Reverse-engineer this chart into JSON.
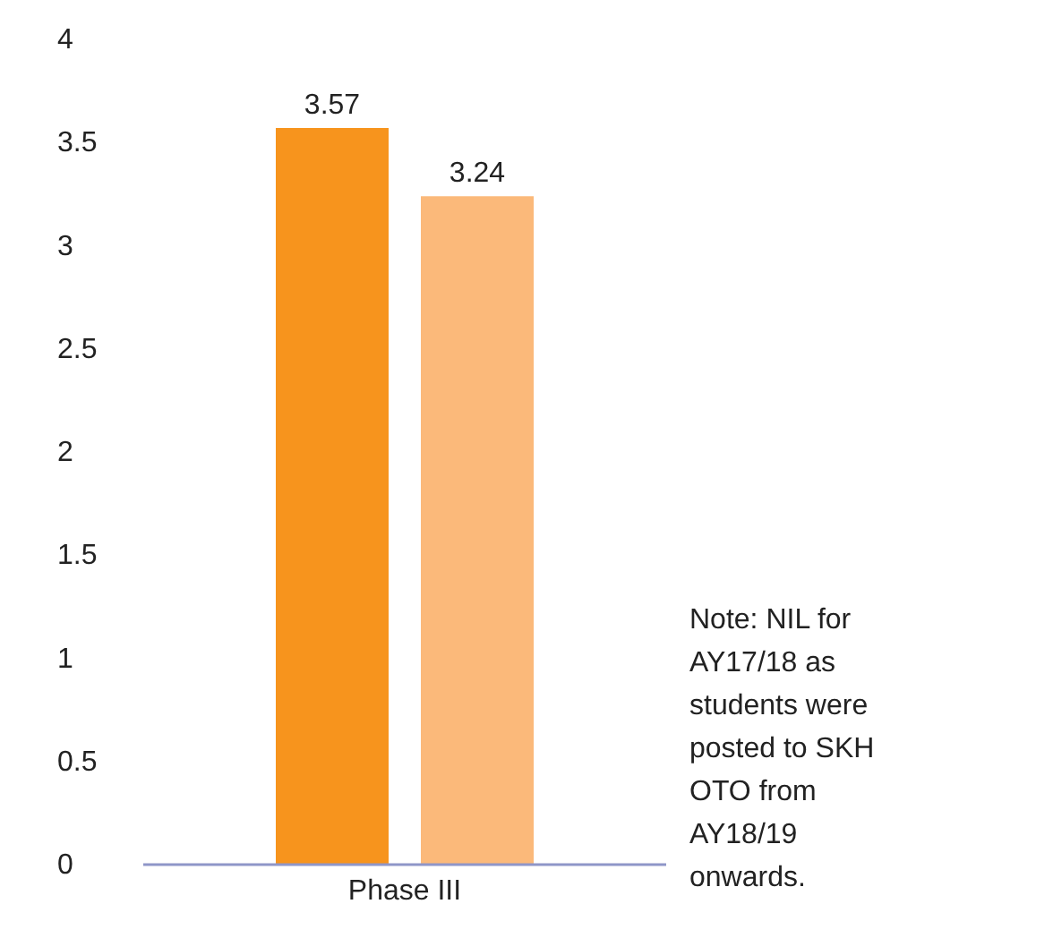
{
  "chart_data": {
    "type": "bar",
    "categories": [
      "Phase III"
    ],
    "series": [
      {
        "color": "#f7941d",
        "values": [
          3.57
        ]
      },
      {
        "color": "#fbb97a",
        "values": [
          3.24
        ]
      }
    ],
    "ylim": [
      0,
      4
    ],
    "yticks": [
      0,
      0.5,
      1,
      1.5,
      2,
      2.5,
      3,
      3.5,
      4
    ],
    "grid": false,
    "data_labels": true,
    "annotations": [
      "Note: NIL for AY17/18 as students were posted to SKH OTO from AY18/19 onwards."
    ]
  }
}
